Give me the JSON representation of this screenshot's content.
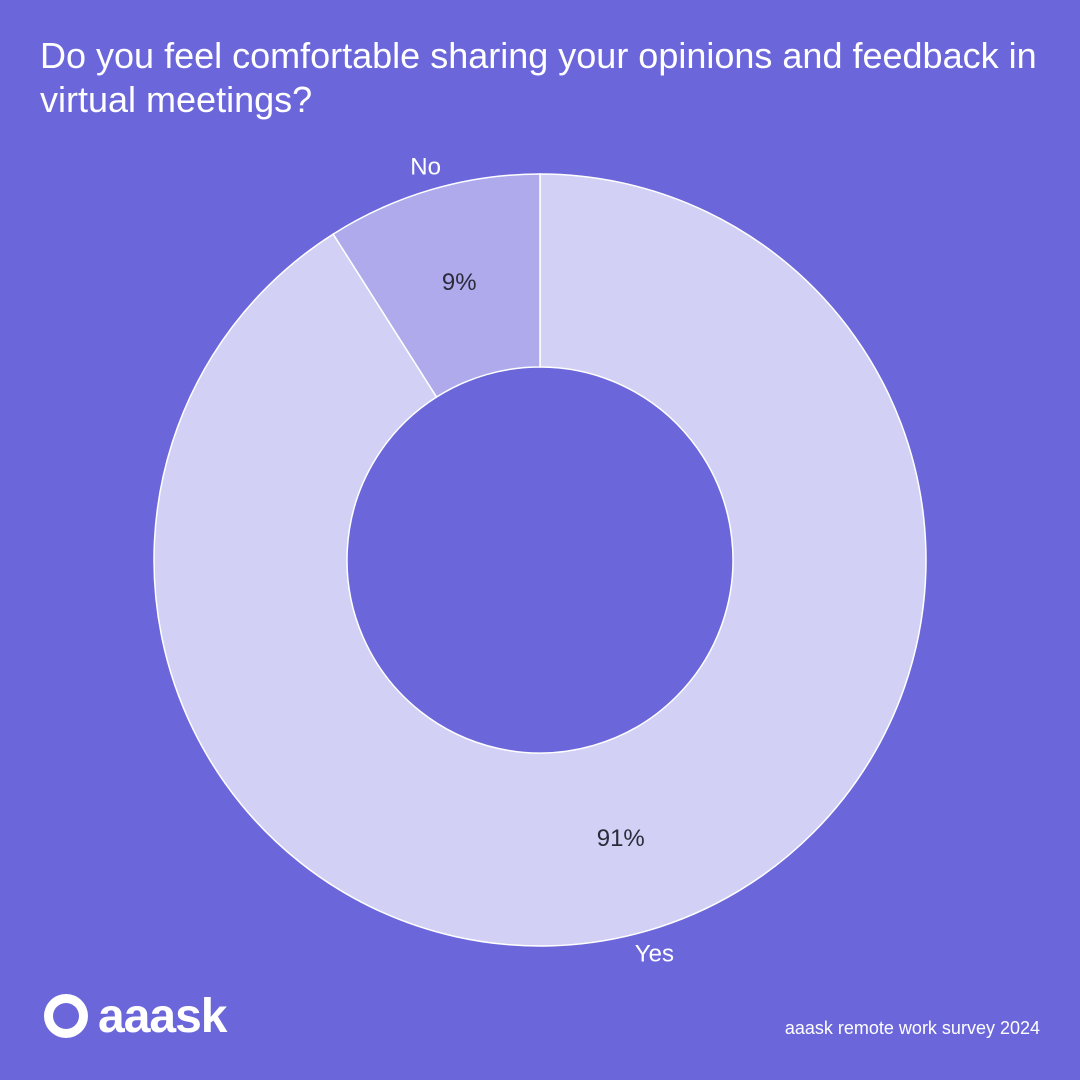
{
  "chart_data": {
    "type": "pie",
    "donut": true,
    "title": "Do you feel comfortable sharing your opinions and feedback in virtual meetings?",
    "slices": [
      {
        "label": "Yes",
        "value": 91,
        "display": "91%",
        "color": "#d2d0f4"
      },
      {
        "label": "No",
        "value": 9,
        "display": "9%",
        "color": "#aeaaeb"
      }
    ]
  },
  "brand": {
    "name": "aaask",
    "background": "#6b67db"
  },
  "source": "aaask remote work survey 2024"
}
